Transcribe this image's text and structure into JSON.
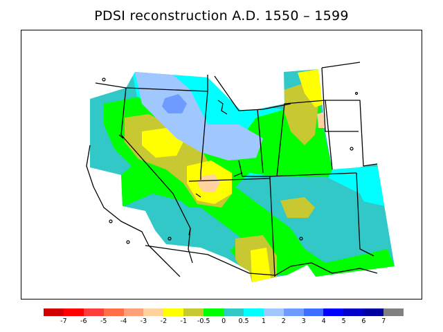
{
  "title": "PDSI reconstruction A.D. 1550 – 1599",
  "legend": {
    "colors": [
      "#d10000",
      "#ff0000",
      "#ff3c3c",
      "#ff6e46",
      "#ffa07a",
      "#ffd2a0",
      "#ffff00",
      "#c8c832",
      "#00ff00",
      "#32c8c8",
      "#00ffff",
      "#a0c8ff",
      "#6e9bff",
      "#3c6eff",
      "#0000ff",
      "#0000c8",
      "#0000a0",
      "#808080"
    ],
    "labels": [
      "-7",
      "-6",
      "-5",
      "-4",
      "-3",
      "-2",
      "-1",
      "-0.5",
      "0",
      "0.5",
      "1",
      "2",
      "3",
      "4",
      "5",
      "6",
      "7"
    ]
  },
  "map": {
    "colors": {
      "teal": "#32c8c8",
      "cyan": "#00ffff",
      "green": "#00ff00",
      "olive": "#c8c832",
      "yellow": "#ffff00",
      "peach": "#ffd2a0",
      "lightblue": "#a0c8ff",
      "blue": "#6e9bff",
      "border": "#000000"
    }
  }
}
